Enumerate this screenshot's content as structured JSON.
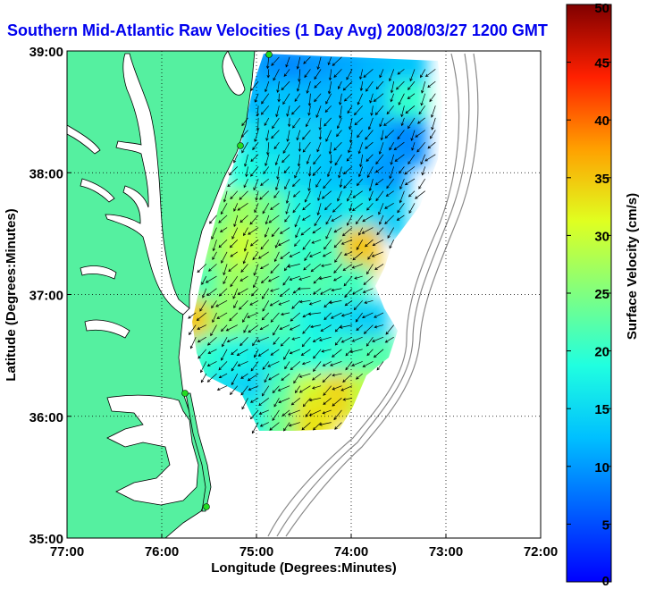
{
  "chart_data": {
    "type": "heatmap",
    "title": "Southern Mid-Atlantic Raw Velocities (1 Day Avg) 2008/03/27 1200 GMT",
    "xlabel": "Longitude (Degrees:Minutes)",
    "ylabel": "Latitude (Degrees:Minutes)",
    "x_ticks": [
      {
        "value": -77,
        "label": "77:00"
      },
      {
        "value": -76,
        "label": "76:00"
      },
      {
        "value": -75,
        "label": "75:00"
      },
      {
        "value": -74,
        "label": "74:00"
      },
      {
        "value": -73,
        "label": "73:00"
      },
      {
        "value": -72,
        "label": "72:00"
      }
    ],
    "y_ticks": [
      {
        "value": 35,
        "label": "35:00"
      },
      {
        "value": 36,
        "label": "36:00"
      },
      {
        "value": 37,
        "label": "37:00"
      },
      {
        "value": 38,
        "label": "38:00"
      },
      {
        "value": 39,
        "label": "39:00"
      }
    ],
    "xlim": [
      -77,
      -72
    ],
    "ylim": [
      35,
      39
    ],
    "grid": true,
    "colorbar": {
      "label": "Surface Velocity (cm/s)",
      "range": [
        0,
        50
      ],
      "ticks": [
        {
          "value": 0,
          "label": "0"
        },
        {
          "value": 5,
          "label": "5"
        },
        {
          "value": 10,
          "label": "10"
        },
        {
          "value": 15,
          "label": "15"
        },
        {
          "value": 20,
          "label": "20"
        },
        {
          "value": 25,
          "label": "25"
        },
        {
          "value": 30,
          "label": "30"
        },
        {
          "value": 35,
          "label": "35"
        },
        {
          "value": 40,
          "label": "40"
        },
        {
          "value": 45,
          "label": "45"
        },
        {
          "value": 50,
          "label": "50"
        }
      ]
    },
    "colors": {
      "land": "#55f0a0",
      "title": "#0000ee",
      "gauge_station": "#22dd22"
    },
    "velocity_cells": [
      {
        "lon": -74.9,
        "lat": 38.85,
        "v": 10
      },
      {
        "lon": -74.6,
        "lat": 38.85,
        "v": 9
      },
      {
        "lon": -74.3,
        "lat": 38.85,
        "v": 10
      },
      {
        "lon": -74.0,
        "lat": 38.85,
        "v": 11
      },
      {
        "lon": -73.7,
        "lat": 38.85,
        "v": 12
      },
      {
        "lon": -73.4,
        "lat": 38.85,
        "v": 13
      },
      {
        "lon": -75.0,
        "lat": 38.55,
        "v": 12
      },
      {
        "lon": -74.7,
        "lat": 38.55,
        "v": 13
      },
      {
        "lon": -74.4,
        "lat": 38.55,
        "v": 12
      },
      {
        "lon": -74.1,
        "lat": 38.55,
        "v": 12
      },
      {
        "lon": -73.8,
        "lat": 38.55,
        "v": 13
      },
      {
        "lon": -73.4,
        "lat": 38.55,
        "v": 20
      },
      {
        "lon": -75.0,
        "lat": 38.25,
        "v": 16
      },
      {
        "lon": -74.7,
        "lat": 38.25,
        "v": 15
      },
      {
        "lon": -74.4,
        "lat": 38.25,
        "v": 14
      },
      {
        "lon": -74.1,
        "lat": 38.25,
        "v": 13
      },
      {
        "lon": -73.8,
        "lat": 38.25,
        "v": 12
      },
      {
        "lon": -73.4,
        "lat": 38.25,
        "v": 9
      },
      {
        "lon": -75.1,
        "lat": 37.95,
        "v": 19
      },
      {
        "lon": -74.8,
        "lat": 37.95,
        "v": 17
      },
      {
        "lon": -74.5,
        "lat": 37.95,
        "v": 15
      },
      {
        "lon": -74.2,
        "lat": 37.95,
        "v": 13
      },
      {
        "lon": -73.9,
        "lat": 37.95,
        "v": 12
      },
      {
        "lon": -73.6,
        "lat": 37.95,
        "v": 10
      },
      {
        "lon": -75.4,
        "lat": 37.65,
        "v": 24
      },
      {
        "lon": -75.1,
        "lat": 37.65,
        "v": 27
      },
      {
        "lon": -74.8,
        "lat": 37.65,
        "v": 24
      },
      {
        "lon": -74.5,
        "lat": 37.65,
        "v": 18
      },
      {
        "lon": -74.2,
        "lat": 37.65,
        "v": 15
      },
      {
        "lon": -73.9,
        "lat": 37.65,
        "v": 17
      },
      {
        "lon": -73.6,
        "lat": 37.65,
        "v": 14
      },
      {
        "lon": -75.4,
        "lat": 37.35,
        "v": 26
      },
      {
        "lon": -75.1,
        "lat": 37.35,
        "v": 30
      },
      {
        "lon": -74.8,
        "lat": 37.35,
        "v": 26
      },
      {
        "lon": -74.5,
        "lat": 37.35,
        "v": 20
      },
      {
        "lon": -74.2,
        "lat": 37.35,
        "v": 21
      },
      {
        "lon": -73.9,
        "lat": 37.35,
        "v": 35
      },
      {
        "lon": -75.5,
        "lat": 37.05,
        "v": 22
      },
      {
        "lon": -75.2,
        "lat": 37.05,
        "v": 27
      },
      {
        "lon": -74.9,
        "lat": 37.05,
        "v": 25
      },
      {
        "lon": -74.6,
        "lat": 37.05,
        "v": 21
      },
      {
        "lon": -74.3,
        "lat": 37.05,
        "v": 22
      },
      {
        "lon": -74.0,
        "lat": 37.05,
        "v": 21
      },
      {
        "lon": -75.6,
        "lat": 36.75,
        "v": 35
      },
      {
        "lon": -75.3,
        "lat": 36.75,
        "v": 26
      },
      {
        "lon": -75.0,
        "lat": 36.75,
        "v": 24
      },
      {
        "lon": -74.7,
        "lat": 36.75,
        "v": 22
      },
      {
        "lon": -74.4,
        "lat": 36.75,
        "v": 18
      },
      {
        "lon": -74.1,
        "lat": 36.75,
        "v": 16
      },
      {
        "lon": -73.8,
        "lat": 36.75,
        "v": 14
      },
      {
        "lon": -75.5,
        "lat": 36.45,
        "v": 20
      },
      {
        "lon": -75.2,
        "lat": 36.45,
        "v": 18
      },
      {
        "lon": -74.9,
        "lat": 36.45,
        "v": 17
      },
      {
        "lon": -74.6,
        "lat": 36.45,
        "v": 20
      },
      {
        "lon": -74.3,
        "lat": 36.45,
        "v": 19
      },
      {
        "lon": -74.0,
        "lat": 36.45,
        "v": 21
      },
      {
        "lon": -73.7,
        "lat": 36.45,
        "v": 22
      },
      {
        "lon": -75.3,
        "lat": 36.15,
        "v": 15
      },
      {
        "lon": -75.0,
        "lat": 36.15,
        "v": 14
      },
      {
        "lon": -74.7,
        "lat": 36.15,
        "v": 22
      },
      {
        "lon": -74.4,
        "lat": 36.15,
        "v": 30
      },
      {
        "lon": -74.1,
        "lat": 36.15,
        "v": 34
      },
      {
        "lon": -73.8,
        "lat": 36.15,
        "v": 29
      },
      {
        "lon": -75.3,
        "lat": 35.95,
        "v": 22
      },
      {
        "lon": -75.0,
        "lat": 35.95,
        "v": 18
      },
      {
        "lon": -74.7,
        "lat": 35.95,
        "v": 24
      },
      {
        "lon": -74.4,
        "lat": 35.95,
        "v": 33
      }
    ],
    "flow_description_vectors": [
      {
        "lon": -75.0,
        "lat": 38.6,
        "dir_deg": 200
      },
      {
        "lon": -74.4,
        "lat": 38.2,
        "dir_deg": 200
      },
      {
        "lon": -75.1,
        "lat": 37.4,
        "dir_deg": 215
      },
      {
        "lon": -74.4,
        "lat": 37.0,
        "dir_deg": 250
      },
      {
        "lon": -74.8,
        "lat": 36.4,
        "dir_deg": 225
      },
      {
        "lon": -74.2,
        "lat": 36.2,
        "dir_deg": 240
      }
    ]
  }
}
